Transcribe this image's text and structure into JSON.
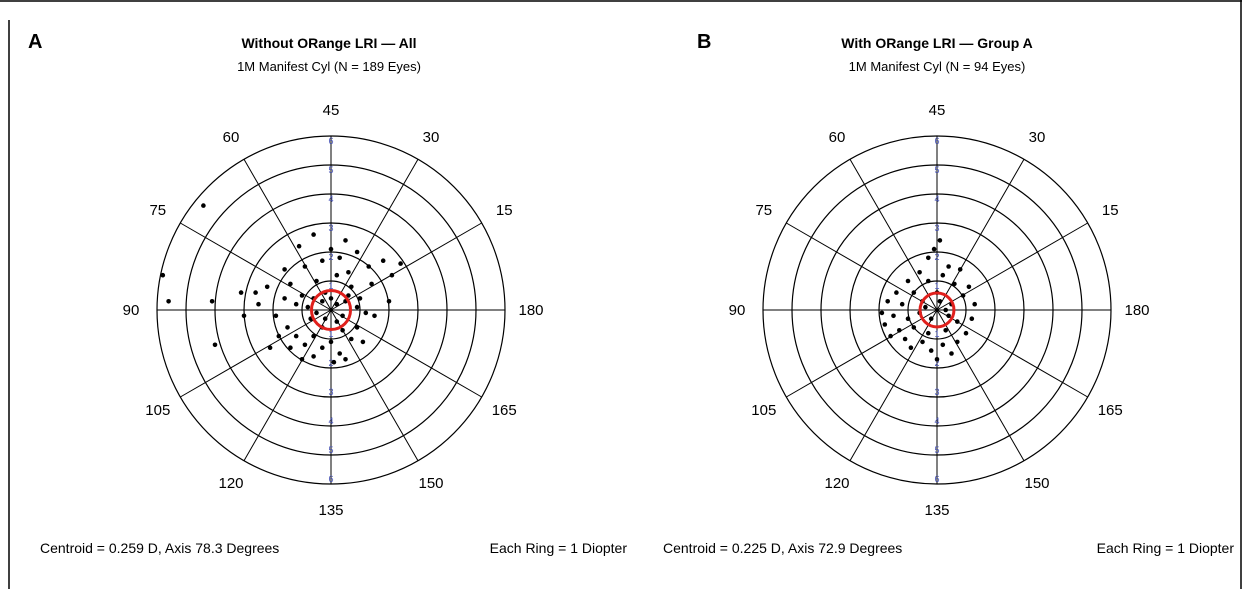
{
  "colors": {
    "ring": "#000000",
    "ring_label": "#4a56b8",
    "point": "#000000",
    "centroid": "#e0201c",
    "frame": "#000000"
  },
  "chart_data": [
    {
      "type": "scatter",
      "panel_label": "A",
      "title": "Without ORange LRI — All",
      "subtitle": "1M Manifest Cyl (N = 189 Eyes)",
      "coordinate_system": "polar (double-angle astigmatism plot)",
      "rings": [
        1,
        2,
        3,
        4,
        5,
        6
      ],
      "ring_tick_labels_top": [
        "1",
        "2",
        "3",
        "4",
        "5",
        "6"
      ],
      "ring_tick_labels_bottom": [
        "1",
        "2",
        "3",
        "4",
        "5",
        "6"
      ],
      "angle_labels": [
        "45",
        "30",
        "15",
        "180",
        "165",
        "150",
        "135",
        "120",
        "105",
        "90",
        "75",
        "60"
      ],
      "centroid": {
        "magnitude_D": 0.259,
        "axis_deg": 78.3
      },
      "centroid_text": "Centroid = 0.259 D, Axis 78.3 Degrees",
      "ring_text": "Each Ring = 1 Diopter",
      "points_xy_diopters": [
        [
          -4.4,
          3.6
        ],
        [
          -5.8,
          1.2
        ],
        [
          -5.6,
          0.3
        ],
        [
          -4.1,
          0.3
        ],
        [
          -4.0,
          -1.2
        ],
        [
          -3.1,
          0.6
        ],
        [
          -3.0,
          -0.2
        ],
        [
          -2.6,
          0.6
        ],
        [
          -2.2,
          0.8
        ],
        [
          -2.5,
          0.2
        ],
        [
          -1.6,
          1.4
        ],
        [
          -1.1,
          2.2
        ],
        [
          -0.6,
          2.6
        ],
        [
          0.0,
          2.1
        ],
        [
          0.5,
          2.4
        ],
        [
          0.9,
          2.0
        ],
        [
          1.8,
          1.7
        ],
        [
          2.1,
          1.2
        ],
        [
          2.4,
          1.6
        ],
        [
          1.4,
          0.9
        ],
        [
          2.0,
          0.3
        ],
        [
          1.5,
          -0.2
        ],
        [
          1.0,
          0.4
        ],
        [
          1.2,
          -0.1
        ],
        [
          0.6,
          1.3
        ],
        [
          1.3,
          1.5
        ],
        [
          -0.9,
          1.5
        ],
        [
          -0.3,
          1.7
        ],
        [
          0.3,
          1.8
        ],
        [
          -1.4,
          0.9
        ],
        [
          -0.5,
          1.0
        ],
        [
          0.2,
          1.2
        ],
        [
          0.7,
          0.8
        ],
        [
          -1.0,
          0.5
        ],
        [
          -0.2,
          0.6
        ],
        [
          0.6,
          0.5
        ],
        [
          -1.6,
          0.4
        ],
        [
          -1.2,
          0.2
        ],
        [
          0.9,
          0.1
        ],
        [
          -0.8,
          0.1
        ],
        [
          -1.9,
          -0.2
        ],
        [
          -1.5,
          -0.6
        ],
        [
          -1.2,
          -0.9
        ],
        [
          -0.9,
          -1.2
        ],
        [
          -0.6,
          -0.9
        ],
        [
          -0.3,
          -1.3
        ],
        [
          0.0,
          -1.1
        ],
        [
          0.3,
          -1.5
        ],
        [
          0.7,
          -1.0
        ],
        [
          0.9,
          -0.6
        ],
        [
          0.4,
          -0.7
        ],
        [
          -0.3,
          -0.6
        ],
        [
          -1.8,
          -0.9
        ],
        [
          -1.4,
          -1.3
        ],
        [
          -0.6,
          -1.6
        ],
        [
          0.5,
          -1.7
        ],
        [
          0.1,
          -1.8
        ],
        [
          -1.0,
          -1.7
        ],
        [
          1.1,
          -1.1
        ],
        [
          -2.1,
          -1.3
        ],
        [
          0.2,
          -0.4
        ],
        [
          -0.7,
          -0.3
        ],
        [
          -0.3,
          0.3
        ],
        [
          0.2,
          0.2
        ],
        [
          -0.5,
          -0.1
        ],
        [
          0.4,
          -0.2
        ],
        [
          -0.2,
          -0.3
        ],
        [
          0.0,
          0.4
        ],
        [
          -0.6,
          0.4
        ],
        [
          0.5,
          0.3
        ]
      ]
    },
    {
      "type": "scatter",
      "panel_label": "B",
      "title": "With ORange LRI — Group A",
      "subtitle": "1M Manifest Cyl (N = 94 Eyes)",
      "coordinate_system": "polar (double-angle astigmatism plot)",
      "rings": [
        1,
        2,
        3,
        4,
        5,
        6
      ],
      "ring_tick_labels_top": [
        "1",
        "2",
        "3",
        "4",
        "5",
        "6"
      ],
      "ring_tick_labels_bottom": [
        "1",
        "2",
        "3",
        "4",
        "5",
        "6"
      ],
      "angle_labels": [
        "45",
        "30",
        "15",
        "180",
        "165",
        "150",
        "135",
        "120",
        "105",
        "90",
        "75",
        "60"
      ],
      "centroid": {
        "magnitude_D": 0.225,
        "axis_deg": 72.9
      },
      "centroid_text": "Centroid = 0.225 D, Axis 72.9 Degrees",
      "ring_text": "Each Ring = 1 Diopter",
      "points_xy_diopters": [
        [
          -0.1,
          2.1
        ],
        [
          0.1,
          2.4
        ],
        [
          -0.3,
          1.8
        ],
        [
          0.4,
          1.5
        ],
        [
          0.8,
          1.4
        ],
        [
          -0.6,
          1.3
        ],
        [
          0.2,
          1.2
        ],
        [
          -1.0,
          1.0
        ],
        [
          -0.3,
          1.0
        ],
        [
          0.6,
          0.9
        ],
        [
          1.1,
          0.8
        ],
        [
          -1.4,
          0.6
        ],
        [
          -0.8,
          0.6
        ],
        [
          0.0,
          0.6
        ],
        [
          0.9,
          0.5
        ],
        [
          -1.7,
          0.3
        ],
        [
          -1.2,
          0.2
        ],
        [
          -0.5,
          0.3
        ],
        [
          0.5,
          0.2
        ],
        [
          1.3,
          0.2
        ],
        [
          -1.9,
          -0.1
        ],
        [
          -1.5,
          -0.2
        ],
        [
          -1.0,
          -0.3
        ],
        [
          1.2,
          -0.3
        ],
        [
          0.7,
          -0.4
        ],
        [
          -1.8,
          -0.5
        ],
        [
          -1.3,
          -0.7
        ],
        [
          -0.8,
          -0.6
        ],
        [
          -0.3,
          -0.8
        ],
        [
          0.3,
          -0.7
        ],
        [
          1.0,
          -0.8
        ],
        [
          -1.6,
          -0.9
        ],
        [
          -1.1,
          -1.0
        ],
        [
          -0.5,
          -1.1
        ],
        [
          0.2,
          -1.2
        ],
        [
          0.7,
          -1.1
        ],
        [
          -0.9,
          -1.3
        ],
        [
          -0.2,
          -1.4
        ],
        [
          0.5,
          -1.5
        ],
        [
          0.0,
          -1.7
        ],
        [
          -0.4,
          0.1
        ],
        [
          0.3,
          0.0
        ],
        [
          -0.2,
          -0.3
        ],
        [
          0.1,
          0.3
        ],
        [
          -0.6,
          -0.1
        ],
        [
          0.4,
          -0.2
        ]
      ]
    }
  ]
}
